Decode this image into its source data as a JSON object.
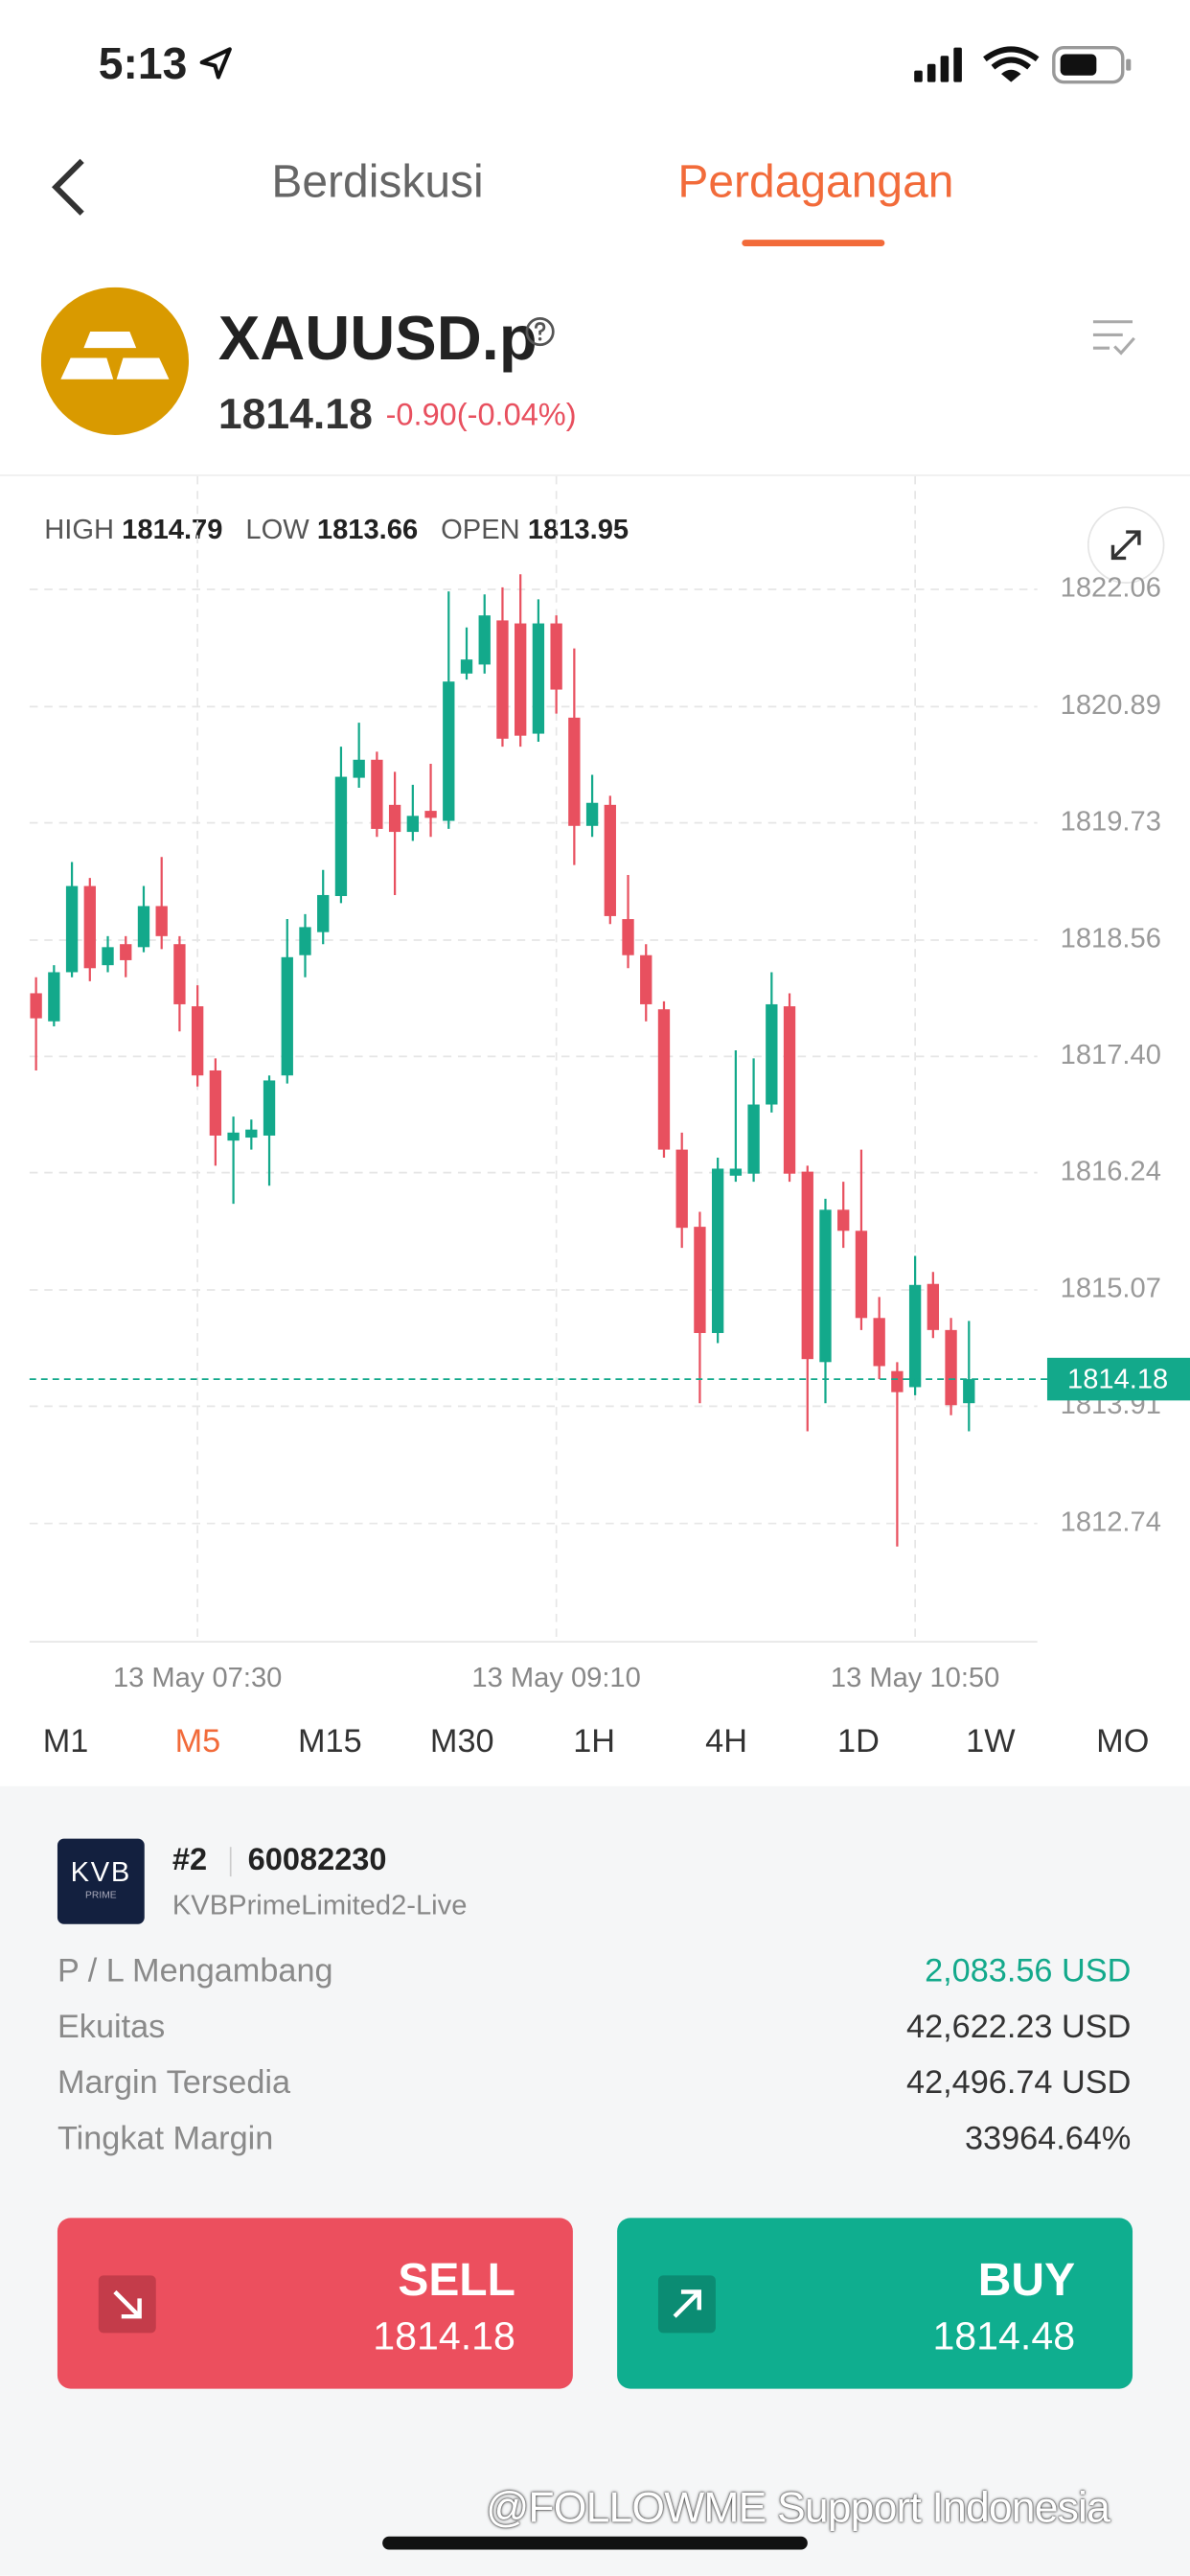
{
  "status_bar": {
    "time": "5:13"
  },
  "tabs": [
    "Berdiskusi",
    "Perdagangan"
  ],
  "active_tab": "Perdagangan",
  "instrument": {
    "symbol": "XAUUSD.p",
    "price": "1814.18",
    "change": "-0.90(-0.04%)"
  },
  "stats": [
    {
      "label": "HIGH",
      "value": "1814.79"
    },
    {
      "label": "LOW",
      "value": "1813.66"
    },
    {
      "label": "OPEN",
      "value": "1813.95"
    }
  ],
  "chart_data": {
    "type": "candlestick",
    "categories": [
      null,
      null,
      null,
      null,
      null,
      null,
      null,
      null,
      null,
      "13 May 07:30",
      null,
      null,
      null,
      null,
      null,
      null,
      null,
      null,
      null,
      null,
      null,
      null,
      null,
      null,
      null,
      null,
      null,
      null,
      null,
      "13 May 09:10",
      null,
      null,
      null,
      null,
      null,
      null,
      null,
      null,
      null,
      null,
      null,
      null,
      null,
      null,
      null,
      null,
      null,
      null,
      null,
      "13 May 10:50",
      null,
      null,
      null
    ],
    "open": [
      1818.03,
      1817.75,
      1818.24,
      1819.1,
      1818.31,
      1818.52,
      1818.49,
      1818.9,
      1818.52,
      1817.9,
      1817.26,
      1816.56,
      1816.59,
      1816.61,
      1817.21,
      1818.41,
      1818.64,
      1819.0,
      1820.18,
      1820.36,
      1819.91,
      1819.64,
      1819.85,
      1819.75,
      1821.22,
      1821.31,
      1821.75,
      1821.72,
      1820.62,
      1821.72,
      1820.78,
      1819.7,
      1819.91,
      1818.77,
      1818.41,
      1817.87,
      1816.47,
      1815.7,
      1814.64,
      1816.21,
      1816.23,
      1816.92,
      1817.9,
      1816.25,
      1814.35,
      1815.87,
      1815.66,
      1814.79,
      1814.26,
      1814.1,
      1815.13,
      1814.67,
      1813.94
    ],
    "high": [
      1818.19,
      1818.31,
      1819.34,
      1819.18,
      1818.6,
      1818.6,
      1819.1,
      1819.39,
      1818.6,
      1818.11,
      1817.38,
      1816.8,
      1816.77,
      1817.21,
      1818.77,
      1818.82,
      1819.26,
      1820.49,
      1820.73,
      1820.44,
      1820.24,
      1820.11,
      1820.32,
      1822.04,
      1821.68,
      1822.01,
      1822.08,
      1822.21,
      1821.96,
      1821.8,
      1821.47,
      1820.21,
      1820.0,
      1819.21,
      1818.52,
      1817.95,
      1816.64,
      1815.85,
      1816.39,
      1817.46,
      1817.38,
      1818.24,
      1818.03,
      1816.31,
      1815.98,
      1816.15,
      1816.47,
      1815.0,
      1814.35,
      1815.41,
      1815.25,
      1814.79,
      1814.76
    ],
    "low": [
      1817.26,
      1817.7,
      1818.19,
      1818.15,
      1818.24,
      1818.19,
      1818.44,
      1818.47,
      1817.65,
      1817.1,
      1816.31,
      1815.93,
      1816.47,
      1816.11,
      1817.13,
      1818.19,
      1818.52,
      1818.93,
      1820.08,
      1819.59,
      1819.01,
      1819.55,
      1819.59,
      1819.67,
      1821.16,
      1821.22,
      1820.49,
      1820.49,
      1820.54,
      1820.82,
      1819.31,
      1819.59,
      1818.72,
      1818.28,
      1817.75,
      1816.39,
      1815.49,
      1813.94,
      1814.54,
      1816.15,
      1816.15,
      1816.84,
      1816.15,
      1813.66,
      1813.94,
      1815.49,
      1814.67,
      1814.18,
      1812.51,
      1814.02,
      1814.59,
      1813.82,
      1813.66
    ],
    "close": [
      1817.78,
      1818.24,
      1819.1,
      1818.28,
      1818.49,
      1818.36,
      1818.9,
      1818.6,
      1817.92,
      1817.21,
      1816.61,
      1816.64,
      1816.67,
      1817.16,
      1818.39,
      1818.69,
      1819.01,
      1820.19,
      1820.36,
      1819.67,
      1819.64,
      1819.8,
      1819.78,
      1821.14,
      1821.36,
      1821.8,
      1820.57,
      1820.6,
      1821.72,
      1821.06,
      1819.7,
      1819.93,
      1818.8,
      1818.41,
      1817.92,
      1816.47,
      1815.69,
      1814.64,
      1816.28,
      1816.28,
      1816.92,
      1817.92,
      1816.23,
      1814.38,
      1815.87,
      1815.66,
      1814.79,
      1814.31,
      1814.05,
      1815.12,
      1814.67,
      1813.92,
      1814.18
    ],
    "up_color": "#13a98b",
    "down_color": "#e8505f",
    "ylim": [
      1811.56,
      1823.19
    ],
    "yticks": [
      1822.06,
      1820.89,
      1819.73,
      1818.56,
      {
        "value": 1817.4,
        "label": "1817.40"
      },
      1816.24,
      1815.07,
      1813.91,
      1812.74
    ],
    "grid": true,
    "last_price": 1814.18,
    "last_price_color": "#13a98b"
  },
  "timeframes": [
    "M1",
    "M5",
    "M15",
    "M30",
    "1H",
    "4H",
    "1D",
    "1W",
    "MO"
  ],
  "active_timeframe": "M5",
  "account": {
    "logo": "KVB",
    "logo_sub": "PRIME",
    "number": "#2",
    "id": "60082230",
    "server": "KVBPrimeLimited2-Live",
    "rows": [
      {
        "label": "P / L Mengambang",
        "value": "2,083.56 USD"
      },
      {
        "label": "Ekuitas",
        "value": "42,622.23 USD"
      },
      {
        "label": "Margin Tersedia",
        "value": "42,496.74 USD"
      },
      {
        "label": "Tingkat Margin",
        "value": "33964.64%"
      }
    ]
  },
  "buttons": [
    {
      "label": "SELL",
      "price": "1814.18"
    },
    {
      "label": "BUY",
      "price": "1814.48"
    }
  ],
  "watermark": "@FOLLOWME Support Indonesia"
}
